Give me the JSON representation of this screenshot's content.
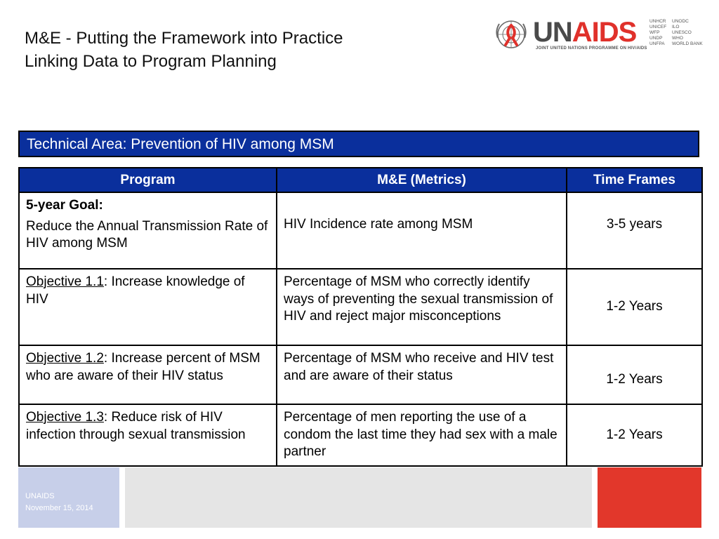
{
  "header": {
    "title_line1": "M&E - Putting the Framework into Practice",
    "title_line2": "Linking Data to Program Planning"
  },
  "logo": {
    "word_un": "UN",
    "word_aids": "AIDS",
    "tagline": "JOINT UNITED NATIONS PROGRAMME ON HIV/AIDS",
    "cosponsors_col1": [
      "UNHCR",
      "UNICEF",
      "WFP",
      "UNDP",
      "UNFPA"
    ],
    "cosponsors_col2": [
      "UNODC",
      "ILO",
      "UNESCO",
      "WHO",
      "WORLD BANK"
    ],
    "colors": {
      "grey": "#4a4a4a",
      "red": "#e0312b"
    }
  },
  "technical_area": "Technical Area: Prevention of HIV among MSM",
  "table": {
    "headers": [
      "Program",
      "M&E (Metrics)",
      "Time Frames"
    ],
    "rows": [
      {
        "program_head": "5-year Goal:",
        "program_text": "Reduce the Annual Transmission Rate of HIV among MSM",
        "metric": "HIV Incidence rate among MSM",
        "time": "3-5 years"
      },
      {
        "program_ref": "Objective 1.1",
        "program_text": ": Increase knowledge of HIV",
        "metric": "Percentage of MSM who correctly identify ways of preventing the sexual transmission of HIV and reject major misconceptions",
        "time": "1-2 Years"
      },
      {
        "program_ref": "Objective 1.2",
        "program_text": ": Increase percent of MSM who are aware of their HIV status",
        "metric": "Percentage of MSM who receive and HIV test and are aware of their status",
        "time": "1-2 Years"
      },
      {
        "program_ref": "Objective 1.3",
        "program_text": ": Reduce risk of HIV infection through sexual transmission",
        "metric": "Percentage of men reporting the use of a condom the last time they had sex with a male partner",
        "time": "1-2 Years"
      }
    ]
  },
  "footer": {
    "org": "UNAIDS",
    "date": "November 15, 2014",
    "colors": {
      "blue": "#c7cfe9",
      "gray": "#e5e5e5",
      "red": "#e2372b"
    }
  },
  "colors": {
    "header_blue": "#0a2f9c"
  }
}
